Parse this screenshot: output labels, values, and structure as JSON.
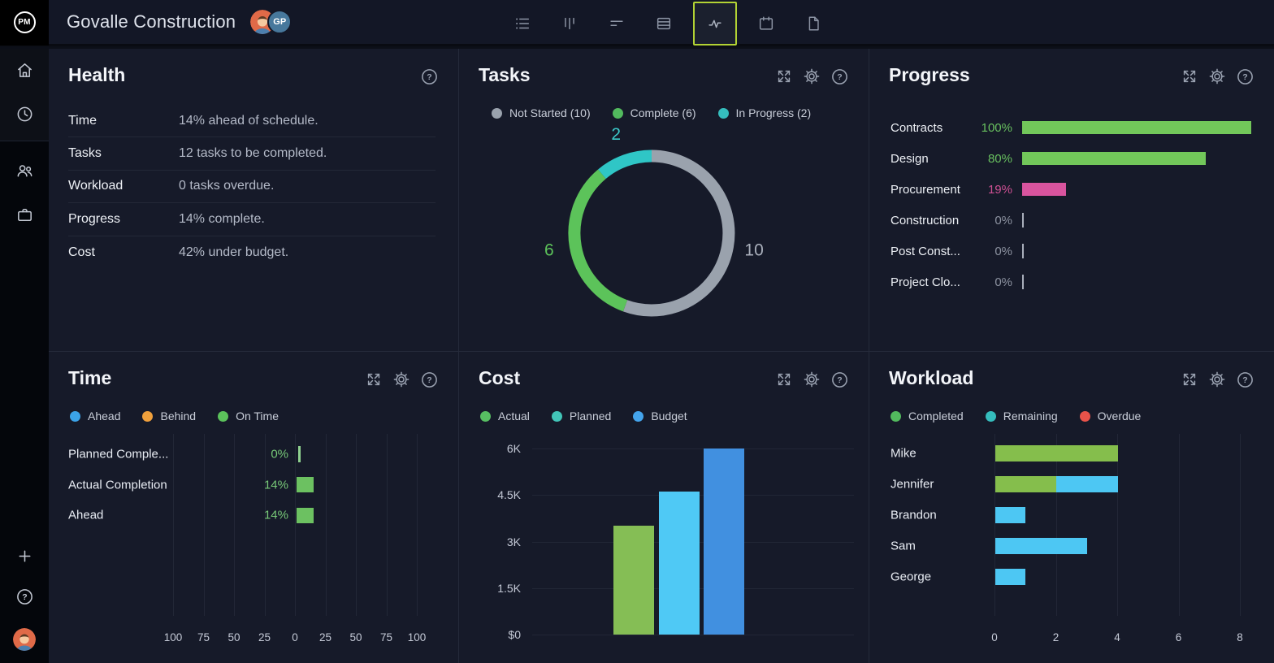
{
  "topbar": {
    "logo_text": "PM",
    "title": "Govalle Construction",
    "avatar_initials": "GP",
    "active_tool_border": "#b3d334",
    "tools": [
      {
        "name": "list-view",
        "active": false
      },
      {
        "name": "board-view",
        "active": false
      },
      {
        "name": "gantt-view",
        "active": false
      },
      {
        "name": "sheet-view",
        "active": false
      },
      {
        "name": "activity-view",
        "active": true
      },
      {
        "name": "calendar-view",
        "active": false
      },
      {
        "name": "docs-view",
        "active": false
      }
    ]
  },
  "sidebar": {
    "top_items": [
      "home",
      "clock"
    ],
    "mid_items": [
      "team",
      "portfolio"
    ],
    "bottom_items": [
      "add",
      "help",
      "profile"
    ]
  },
  "panels": {
    "health": {
      "title": "Health",
      "rows": [
        {
          "label": "Time",
          "value": "14% ahead of schedule."
        },
        {
          "label": "Tasks",
          "value": "12 tasks to be completed."
        },
        {
          "label": "Workload",
          "value": "0 tasks overdue."
        },
        {
          "label": "Progress",
          "value": "14% complete."
        },
        {
          "label": "Cost",
          "value": "42% under budget."
        }
      ]
    },
    "tasks": {
      "title": "Tasks",
      "chart_data": {
        "type": "donut",
        "total": 18,
        "legend": [
          {
            "label": "Not Started (10)",
            "color": "#9aa2ad"
          },
          {
            "label": "Complete (6)",
            "color": "#52ba5e"
          },
          {
            "label": "In Progress (2)",
            "color": "#35bdbd"
          }
        ],
        "segments": [
          {
            "label": "Not Started",
            "value": 10,
            "color": "#9aa2ad",
            "label_color": "#a9afbb"
          },
          {
            "label": "Complete",
            "value": 6,
            "color": "#5cc35a",
            "label_color": "#5cc35a"
          },
          {
            "label": "In Progress",
            "value": 2,
            "color": "#2fc6c6",
            "label_color": "#3cc9c9"
          }
        ]
      }
    },
    "progress": {
      "title": "Progress",
      "chart_data": {
        "type": "bar-h",
        "xmax": 100,
        "rows": [
          {
            "label": "Contracts",
            "pct": 100,
            "pct_label": "100%",
            "bar_color": "#72c75a",
            "value_color": "#68c05f"
          },
          {
            "label": "Design",
            "pct": 80,
            "pct_label": "80%",
            "bar_color": "#72c75a",
            "value_color": "#68c05f"
          },
          {
            "label": "Procurement",
            "pct": 19,
            "pct_label": "19%",
            "bar_color": "#d9549e",
            "value_color": "#cf5093"
          },
          {
            "label": "Construction",
            "pct": 0,
            "pct_label": "0%",
            "bar_color": "#a9afbb",
            "value_color": "#8d93a1"
          },
          {
            "label": "Post Const...",
            "pct": 0,
            "pct_label": "0%",
            "bar_color": "#a9afbb",
            "value_color": "#8d93a1"
          },
          {
            "label": "Project Clo...",
            "pct": 0,
            "pct_label": "0%",
            "bar_color": "#a9afbb",
            "value_color": "#8d93a1"
          }
        ]
      }
    },
    "time": {
      "title": "Time",
      "chart_data": {
        "type": "diverging-bar-h",
        "legend": [
          {
            "label": "Ahead",
            "color": "#3ba3e8"
          },
          {
            "label": "Behind",
            "color": "#f0a03c"
          },
          {
            "label": "On Time",
            "color": "#5bc25b"
          }
        ],
        "rows": [
          {
            "label": "Planned Comple...",
            "pct": 0,
            "pct_label": "0%"
          },
          {
            "label": "Actual Completion",
            "pct": 14,
            "pct_label": "14%"
          },
          {
            "label": "Ahead",
            "pct": 14,
            "pct_label": "14%"
          }
        ],
        "bar_color": "#6cc161",
        "value_color": "#77c877",
        "axis_ticks": [
          "100",
          "75",
          "50",
          "25",
          "0",
          "25",
          "50",
          "75",
          "100"
        ],
        "axis_range": [
          -100,
          100
        ]
      }
    },
    "cost": {
      "title": "Cost",
      "chart_data": {
        "type": "bar",
        "legend": [
          {
            "label": "Actual",
            "color": "#57be62"
          },
          {
            "label": "Planned",
            "color": "#42c5b8"
          },
          {
            "label": "Budget",
            "color": "#44a4ec"
          }
        ],
        "bars": [
          {
            "name": "Actual",
            "value": 3500,
            "color": "#85be55"
          },
          {
            "name": "Planned",
            "value": 4600,
            "color": "#4fc9f5"
          },
          {
            "name": "Budget",
            "value": 6000,
            "color": "#4190e0"
          }
        ],
        "y_ticks": [
          {
            "label": "6K",
            "value": 6000
          },
          {
            "label": "4.5K",
            "value": 4500
          },
          {
            "label": "3K",
            "value": 3000
          },
          {
            "label": "1.5K",
            "value": 1500
          },
          {
            "label": "$0",
            "value": 0
          }
        ],
        "ymax": 6000
      }
    },
    "workload": {
      "title": "Workload",
      "chart_data": {
        "type": "stacked-bar-h",
        "legend": [
          {
            "label": "Completed",
            "color": "#52ba5e"
          },
          {
            "label": "Remaining",
            "color": "#35bdbd"
          },
          {
            "label": "Overdue",
            "color": "#e8534a"
          }
        ],
        "bar_colors": {
          "completed": "#85be4c",
          "remaining": "#4dc7f3",
          "overdue": "#e8534a"
        },
        "rows": [
          {
            "name": "Mike",
            "completed": 4,
            "remaining": 0,
            "overdue": 0
          },
          {
            "name": "Jennifer",
            "completed": 2,
            "remaining": 2,
            "overdue": 0
          },
          {
            "name": "Brandon",
            "completed": 0,
            "remaining": 1,
            "overdue": 0
          },
          {
            "name": "Sam",
            "completed": 0,
            "remaining": 3,
            "overdue": 0
          },
          {
            "name": "George",
            "completed": 0,
            "remaining": 1,
            "overdue": 0
          }
        ],
        "x_ticks": [
          "0",
          "2",
          "4",
          "6",
          "8"
        ],
        "xmax": 8
      }
    }
  }
}
